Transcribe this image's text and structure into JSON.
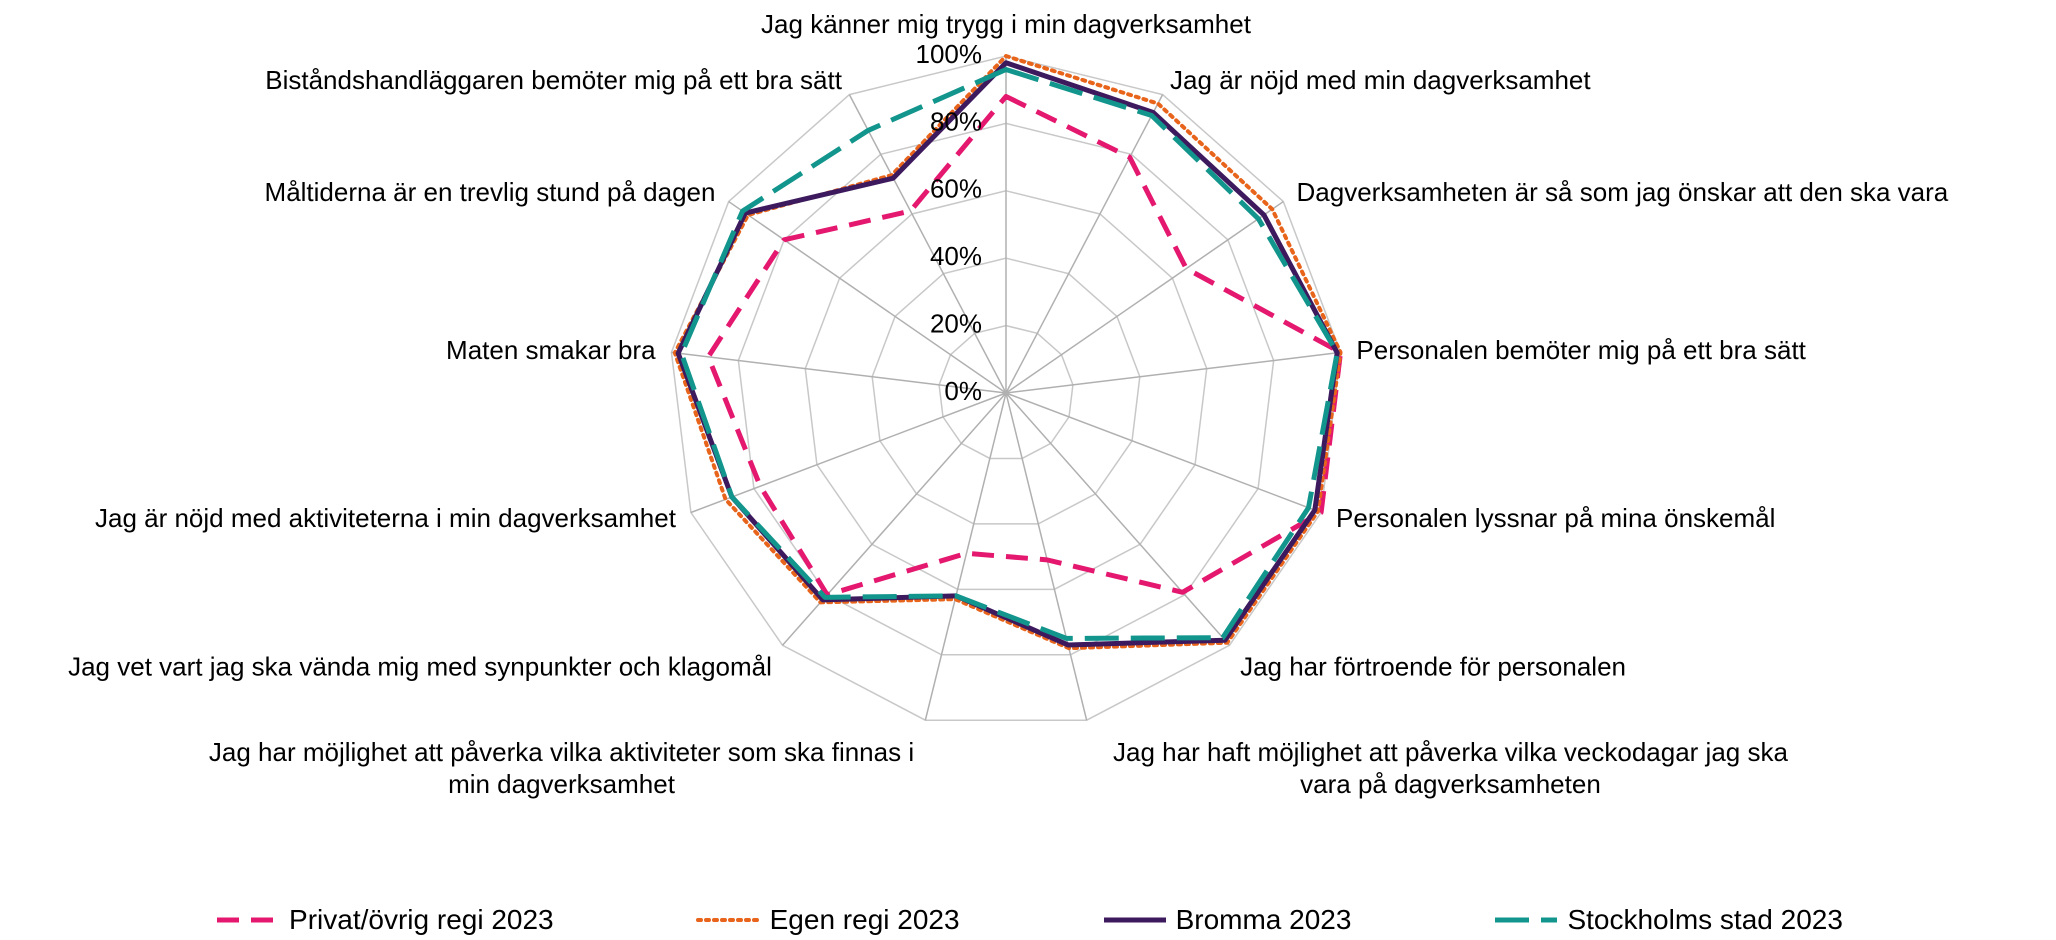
{
  "chart_data": {
    "type": "radar",
    "categories": [
      "Jag känner mig trygg i min dagverksamhet",
      "Jag är nöjd med min dagverksamhet",
      "Dagverksamheten är så som jag önskar att den ska vara",
      "Personalen bemöter mig på ett bra sätt",
      "Personalen lyssnar på mina önskemål",
      "Jag har förtroende för personalen",
      "Jag har haft möjlighet att påverka vilka veckodagar jag ska vara på dagverksamheten",
      "Jag har möjlighet att påverka vilka aktiviteter som ska finnas i min dagverksamhet",
      "Jag vet vart jag ska vända mig med synpunkter och klagomål",
      "Jag är nöjd med aktiviteterna i min dagverksamhet",
      "Maten smakar bra",
      "Måltiderna är en trevlig stund på dagen",
      "Biståndshandläggaren bemöter mig på ett bra sätt"
    ],
    "series": [
      {
        "name": "Privat/övrig regi 2023",
        "color": "#e5186f",
        "dash": "dashed",
        "values": [
          88,
          79,
          65,
          100,
          100,
          79,
          51,
          49,
          80,
          78,
          89,
          80,
          61
        ]
      },
      {
        "name": "Egen regi 2023",
        "color": "#e8641b",
        "dash": "dotted",
        "values": [
          100,
          97,
          96,
          100,
          99,
          99,
          78,
          63,
          83,
          89,
          99,
          93,
          73
        ]
      },
      {
        "name": "Bromma 2023",
        "color": "#3d1a5e",
        "dash": "solid",
        "values": [
          98,
          94,
          93,
          99,
          98,
          98,
          77,
          62,
          82,
          87,
          98,
          94,
          72
        ]
      },
      {
        "name": "Stockholms stad 2023",
        "color": "#12958c",
        "dash": "longdash",
        "values": [
          96,
          93,
          91,
          99,
          96,
          97,
          75,
          62,
          81,
          87,
          97,
          95,
          88
        ]
      }
    ],
    "ylim": [
      0,
      100
    ],
    "yticks": [
      {
        "value": 0,
        "label": "0%"
      },
      {
        "value": 20,
        "label": "20%"
      },
      {
        "value": 40,
        "label": "40%"
      },
      {
        "value": 60,
        "label": "60%"
      },
      {
        "value": 80,
        "label": "80%"
      },
      {
        "value": 100,
        "label": "100%"
      }
    ],
    "grid": true,
    "legend": "bottom"
  }
}
